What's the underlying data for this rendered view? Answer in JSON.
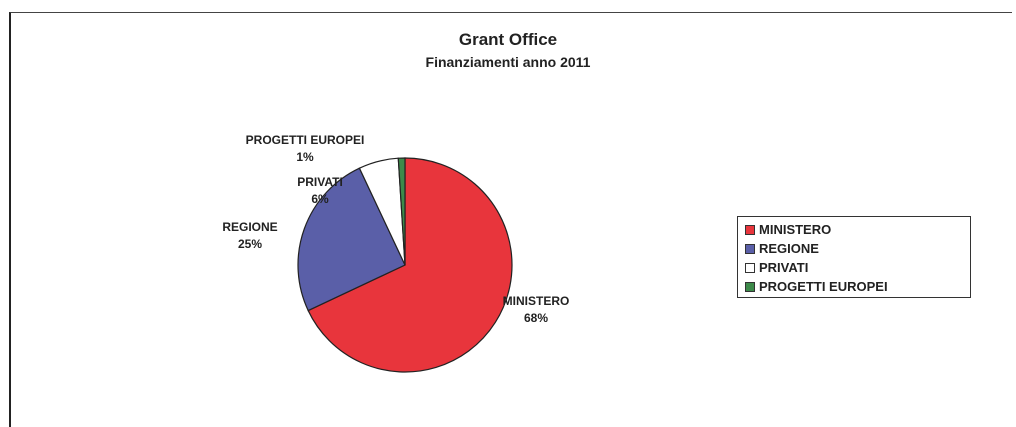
{
  "chart_data": {
    "type": "pie",
    "title": "Grant Office",
    "subtitle": "Finanziamenti anno 2011",
    "slices": [
      {
        "label": "MINISTERO",
        "value": 68,
        "display": "68%",
        "color": "#e8353c"
      },
      {
        "label": "REGIONE",
        "value": 25,
        "display": "25%",
        "color": "#5a5fa8"
      },
      {
        "label": "PRIVATI",
        "value": 6,
        "display": "6%",
        "color": "#ffffff"
      },
      {
        "label": "PROGETTI EUROPEI",
        "value": 1,
        "display": "1%",
        "color": "#3d8a4a"
      }
    ],
    "legend_position": "right"
  }
}
